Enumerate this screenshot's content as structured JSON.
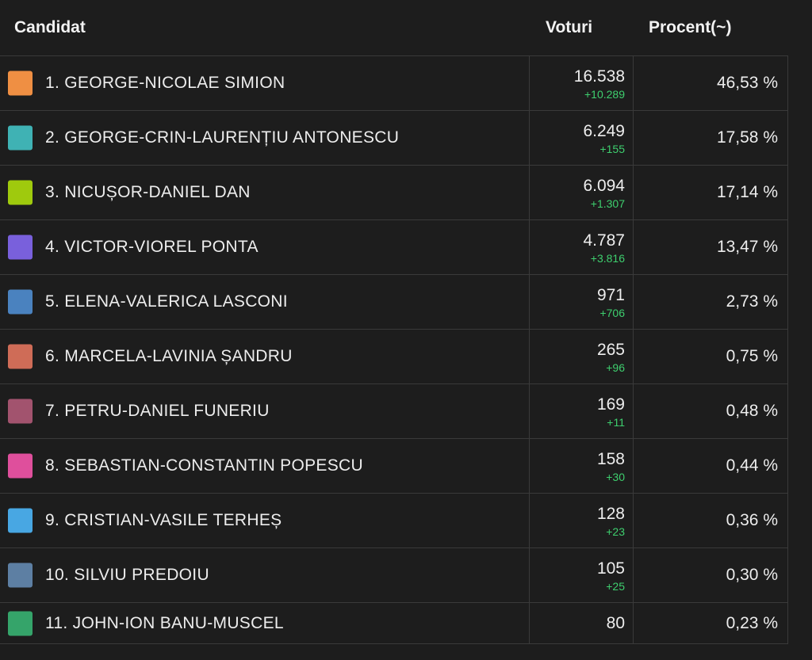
{
  "header": {
    "candidate": "Candidat",
    "votes": "Voturi",
    "percent": "Procent(~)"
  },
  "rows": [
    {
      "name": "1. GEORGE-NICOLAE SIMION",
      "votes": "16.538",
      "delta": "+10.289",
      "percent": "46,53 %",
      "color": "#ef8f43"
    },
    {
      "name": "2. GEORGE-CRIN-LAURENȚIU ANTONESCU",
      "votes": "6.249",
      "delta": "+155",
      "percent": "17,58 %",
      "color": "#3fb2b4"
    },
    {
      "name": "3. NICUȘOR-DANIEL DAN",
      "votes": "6.094",
      "delta": "+1.307",
      "percent": "17,14 %",
      "color": "#9fca0d"
    },
    {
      "name": "4. VICTOR-VIOREL PONTA",
      "votes": "4.787",
      "delta": "+3.816",
      "percent": "13,47 %",
      "color": "#7960dc"
    },
    {
      "name": "5. ELENA-VALERICA LASCONI",
      "votes": "971",
      "delta": "+706",
      "percent": "2,73 %",
      "color": "#4a82bf"
    },
    {
      "name": "6. MARCELA-LAVINIA ȘANDRU",
      "votes": "265",
      "delta": "+96",
      "percent": "0,75 %",
      "color": "#cf6c57"
    },
    {
      "name": "7. PETRU-DANIEL FUNERIU",
      "votes": "169",
      "delta": "+11",
      "percent": "0,48 %",
      "color": "#a2536e"
    },
    {
      "name": "8. SEBASTIAN-CONSTANTIN POPESCU",
      "votes": "158",
      "delta": "+30",
      "percent": "0,44 %",
      "color": "#df4f9c"
    },
    {
      "name": "9. CRISTIAN-VASILE TERHEȘ",
      "votes": "128",
      "delta": "+23",
      "percent": "0,36 %",
      "color": "#48a7e3"
    },
    {
      "name": "10. SILVIU PREDOIU",
      "votes": "105",
      "delta": "+25",
      "percent": "0,30 %",
      "color": "#5d7fa3"
    },
    {
      "name": "11. JOHN-ION BANU-MUSCEL",
      "votes": "80",
      "delta": "",
      "percent": "0,23 %",
      "color": "#35a46a"
    }
  ]
}
